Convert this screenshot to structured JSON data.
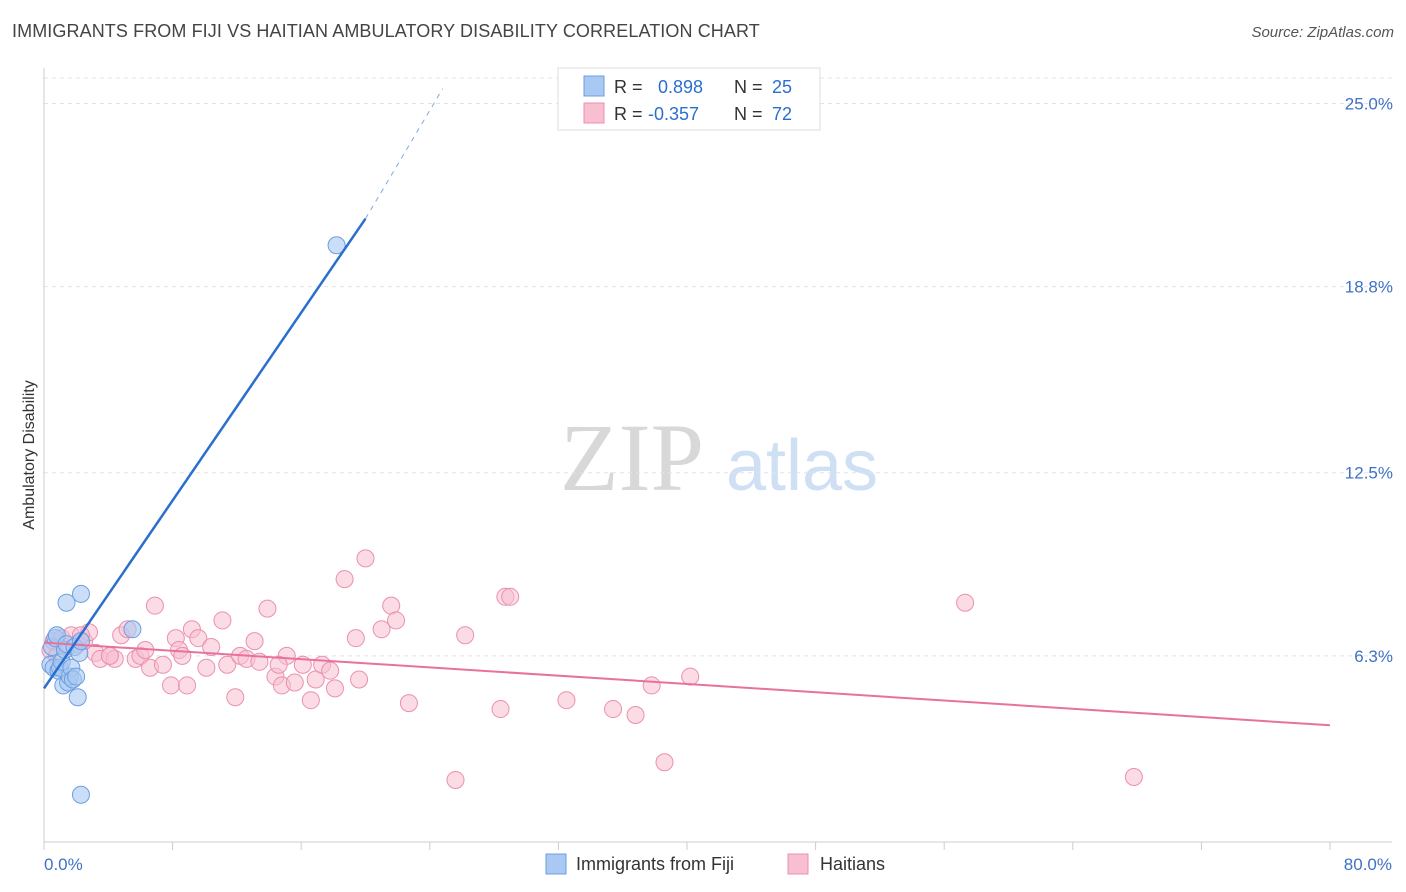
{
  "header": {
    "title": "IMMIGRANTS FROM FIJI VS HAITIAN AMBULATORY DISABILITY CORRELATION CHART",
    "source": "Source: ZipAtlas.com"
  },
  "watermark": {
    "zip": "ZIP",
    "atlas": "atlas"
  },
  "legend_box": {
    "rows": [
      {
        "r_label": "R =",
        "r_value": "0.898",
        "n_label": "N =",
        "n_value": "25"
      },
      {
        "r_label": "R =",
        "r_value": "-0.357",
        "n_label": "N =",
        "n_value": "72"
      }
    ]
  },
  "bottom_legend": {
    "items": [
      {
        "label": "Immigrants from Fiji"
      },
      {
        "label": "Haitians"
      }
    ]
  },
  "colors": {
    "fiji_fill": "#a9c8f2",
    "fiji_stroke": "#6c9ee0",
    "fiji_line": "#2a6fcf",
    "haiti_fill": "#f8bfd0",
    "haiti_stroke": "#ec8fb0",
    "haiti_line": "#e8719e",
    "tick_label": "#3f72c4",
    "grid": "#e3e3e3"
  },
  "chart_data": {
    "type": "scatter",
    "title": "IMMIGRANTS FROM FIJI VS HAITIAN AMBULATORY DISABILITY CORRELATION CHART",
    "xlabel": "",
    "ylabel": "Ambulatory Disability",
    "xlim": [
      0,
      80
    ],
    "ylim": [
      0,
      26.2
    ],
    "x_tick_labels": [
      "0.0%",
      "80.0%"
    ],
    "y_ticks": [
      6.3,
      12.5,
      18.8,
      25.0
    ],
    "y_tick_labels": [
      "6.3%",
      "12.5%",
      "18.8%",
      "25.0%"
    ],
    "grid": true,
    "legend_position": "top-center",
    "series": [
      {
        "name": "Immigrants from Fiji",
        "r": 0.898,
        "n": 25,
        "points": [
          [
            0.4,
            6.0
          ],
          [
            0.5,
            6.6
          ],
          [
            0.6,
            5.9
          ],
          [
            0.7,
            6.9
          ],
          [
            0.8,
            7.0
          ],
          [
            0.9,
            5.8
          ],
          [
            1.0,
            5.9
          ],
          [
            1.1,
            6.1
          ],
          [
            1.2,
            5.3
          ],
          [
            1.3,
            6.5
          ],
          [
            1.4,
            6.7
          ],
          [
            1.5,
            5.4
          ],
          [
            1.6,
            5.6
          ],
          [
            1.7,
            5.9
          ],
          [
            1.8,
            5.5
          ],
          [
            1.9,
            6.6
          ],
          [
            2.0,
            5.6
          ],
          [
            2.1,
            4.9
          ],
          [
            2.2,
            6.4
          ],
          [
            2.3,
            6.8
          ],
          [
            1.4,
            8.1
          ],
          [
            2.3,
            1.6
          ],
          [
            5.5,
            7.2
          ],
          [
            2.3,
            8.4
          ],
          [
            18.2,
            20.2
          ]
        ],
        "trend": {
          "x": [
            0.0,
            20.0
          ],
          "y": [
            5.2,
            21.1
          ],
          "dashed_to": {
            "x": 24.8,
            "y": 25.5
          }
        }
      },
      {
        "name": "Haitians",
        "r": -0.357,
        "n": 72,
        "points": [
          [
            0.4,
            6.5
          ],
          [
            0.6,
            6.8
          ],
          [
            0.8,
            6.3
          ],
          [
            1.1,
            6.9
          ],
          [
            1.3,
            6.6
          ],
          [
            1.7,
            7.0
          ],
          [
            2.1,
            6.7
          ],
          [
            2.5,
            6.8
          ],
          [
            2.8,
            7.1
          ],
          [
            3.2,
            6.4
          ],
          [
            3.5,
            6.2
          ],
          [
            4.1,
            6.3
          ],
          [
            4.4,
            6.2
          ],
          [
            4.8,
            7.0
          ],
          [
            5.2,
            7.2
          ],
          [
            5.7,
            6.2
          ],
          [
            6.0,
            6.3
          ],
          [
            6.3,
            6.5
          ],
          [
            6.6,
            5.9
          ],
          [
            6.9,
            8.0
          ],
          [
            7.4,
            6.0
          ],
          [
            7.9,
            5.3
          ],
          [
            8.2,
            6.9
          ],
          [
            8.4,
            6.5
          ],
          [
            8.6,
            6.3
          ],
          [
            8.9,
            5.3
          ],
          [
            9.2,
            7.2
          ],
          [
            9.6,
            6.9
          ],
          [
            10.1,
            5.9
          ],
          [
            10.4,
            6.6
          ],
          [
            11.1,
            7.5
          ],
          [
            11.4,
            6.0
          ],
          [
            11.9,
            4.9
          ],
          [
            12.2,
            6.3
          ],
          [
            12.6,
            6.2
          ],
          [
            13.1,
            6.8
          ],
          [
            13.4,
            6.1
          ],
          [
            13.9,
            7.9
          ],
          [
            14.4,
            5.6
          ],
          [
            14.8,
            5.3
          ],
          [
            15.1,
            6.3
          ],
          [
            15.6,
            5.4
          ],
          [
            16.1,
            6.0
          ],
          [
            16.6,
            4.8
          ],
          [
            16.9,
            5.5
          ],
          [
            17.3,
            6.0
          ],
          [
            17.8,
            5.8
          ],
          [
            18.1,
            5.2
          ],
          [
            18.7,
            8.9
          ],
          [
            19.4,
            6.9
          ],
          [
            19.6,
            5.5
          ],
          [
            20.0,
            9.6
          ],
          [
            21.0,
            7.2
          ],
          [
            21.6,
            8.0
          ],
          [
            21.9,
            7.5
          ],
          [
            22.7,
            4.7
          ],
          [
            25.6,
            2.1
          ],
          [
            26.2,
            7.0
          ],
          [
            28.4,
            4.5
          ],
          [
            28.7,
            8.3
          ],
          [
            29.0,
            8.3
          ],
          [
            32.5,
            4.8
          ],
          [
            35.4,
            4.5
          ],
          [
            36.8,
            4.3
          ],
          [
            37.8,
            5.3
          ],
          [
            38.6,
            2.7
          ],
          [
            40.2,
            5.6
          ],
          [
            57.3,
            8.1
          ],
          [
            67.8,
            2.2
          ],
          [
            2.3,
            7.0
          ],
          [
            4.1,
            6.3
          ],
          [
            14.6,
            6.0
          ]
        ],
        "trend": {
          "x": [
            0.0,
            80.0
          ],
          "y": [
            6.75,
            3.95
          ]
        }
      }
    ]
  }
}
